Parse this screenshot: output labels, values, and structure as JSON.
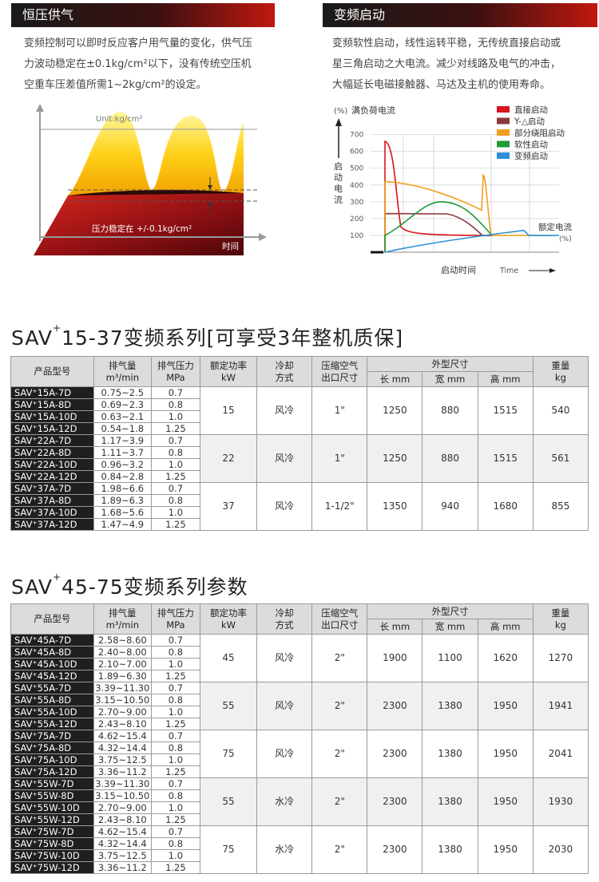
{
  "section1": {
    "title": "恒压供气",
    "text": [
      "变频控制可以即时反应客户用气量的变化，供气压",
      "力波动稳定在±0.1kg/cm²以下，没有传统空压机",
      "空重车压差值所需1~2kg/cm²的设定。"
    ],
    "diagram": {
      "unit": "Unit:kg/cm²",
      "stable_label": "压力稳定在 +/-0.1kg/cm²",
      "x_label": "时间"
    }
  },
  "section2": {
    "title": "变频启动",
    "text": [
      "变频软性启动，线性运转平稳，无传统直接启动或",
      "星三角启动之大电流。减少对线路及电气的冲击，",
      "大幅延长电磁接触器、马达及主机的使用寿命。"
    ]
  },
  "chart_data": {
    "type": "line",
    "title": "满负荷电流",
    "y_unit": "(%)",
    "ylabel": "启动电流",
    "xlabel": "启动时间",
    "x_hint": "Time",
    "right_label": "额定电流",
    "right_unit": "(%)",
    "y_ticks": [
      100,
      200,
      300,
      400,
      500,
      600,
      700
    ],
    "ylim": [
      0,
      760
    ],
    "legend_position": "top-right",
    "series": [
      {
        "name": "直接启动",
        "color": "#d8141c"
      },
      {
        "name": "Y-△启动",
        "color": "#8b3a3a"
      },
      {
        "name": "部分绕阻启动",
        "color": "#f0a020"
      },
      {
        "name": "软性启动",
        "color": "#1f9a3a"
      },
      {
        "name": "变频启动",
        "color": "#2a8fd8"
      }
    ]
  },
  "table1": {
    "title_pre": "SAV",
    "title_sup": "+",
    "title_post": "15-37变频系列[可享受3年整机质保]",
    "headers": {
      "model": "产品型号",
      "flow1": "排气量",
      "flow2": "m³/min",
      "press1": "排气压力",
      "press2": "MPa",
      "power1": "额定功率",
      "power2": "kW",
      "cool1": "冷却",
      "cool2": "方式",
      "outlet1": "压缩空气",
      "outlet2": "出口尺寸",
      "dims": "外型尺寸",
      "length": "长 mm",
      "width": "宽 mm",
      "height": "高 mm",
      "weight1": "重量",
      "weight2": "kg"
    },
    "groups": [
      {
        "power": "15",
        "cooling": "风冷",
        "outlet": "1\"",
        "length": "1250",
        "width": "880",
        "height": "1515",
        "weight": "540",
        "rows": [
          [
            "SAV⁺15A-7D",
            "0.75~2.5",
            "0.7"
          ],
          [
            "SAV⁺15A-8D",
            "0.69~2.3",
            "0.8"
          ],
          [
            "SAV⁺15A-10D",
            "0.63~2.1",
            "1.0"
          ],
          [
            "SAV⁺15A-12D",
            "0.54~1.8",
            "1.25"
          ]
        ]
      },
      {
        "power": "22",
        "cooling": "风冷",
        "outlet": "1\"",
        "length": "1250",
        "width": "880",
        "height": "1515",
        "weight": "561",
        "rows": [
          [
            "SAV⁺22A-7D",
            "1.17~3.9",
            "0.7"
          ],
          [
            "SAV⁺22A-8D",
            "1.11~3.7",
            "0.8"
          ],
          [
            "SAV⁺22A-10D",
            "0.96~3.2",
            "1.0"
          ],
          [
            "SAV⁺22A-12D",
            "0.84~2.8",
            "1.25"
          ]
        ]
      },
      {
        "power": "37",
        "cooling": "风冷",
        "outlet": "1-1/2\"",
        "length": "1350",
        "width": "940",
        "height": "1680",
        "weight": "855",
        "rows": [
          [
            "SAV⁺37A-7D",
            "1.98~6.6",
            "0.7"
          ],
          [
            "SAV⁺37A-8D",
            "1.89~6.3",
            "0.8"
          ],
          [
            "SAV⁺37A-10D",
            "1.68~5.6",
            "1.0"
          ],
          [
            "SAV⁺37A-12D",
            "1.47~4.9",
            "1.25"
          ]
        ]
      }
    ]
  },
  "table2": {
    "title_pre": "SAV",
    "title_sup": "+",
    "title_post": "45-75变频系列参数",
    "groups": [
      {
        "power": "45",
        "cooling": "风冷",
        "outlet": "2\"",
        "length": "1900",
        "width": "1100",
        "height": "1620",
        "weight": "1270",
        "rows": [
          [
            "SAV⁺45A-7D",
            "2.58~8.60",
            "0.7"
          ],
          [
            "SAV⁺45A-8D",
            "2.40~8.00",
            "0.8"
          ],
          [
            "SAV⁺45A-10D",
            "2.10~7.00",
            "1.0"
          ],
          [
            "SAV⁺45A-12D",
            "1.89~6.30",
            "1.25"
          ]
        ]
      },
      {
        "power": "55",
        "cooling": "风冷",
        "outlet": "2\"",
        "length": "2300",
        "width": "1380",
        "height": "1950",
        "weight": "1941",
        "rows": [
          [
            "SAV⁺55A-7D",
            "3.39~11.30",
            "0.7"
          ],
          [
            "SAV⁺55A-8D",
            "3.15~10.50",
            "0.8"
          ],
          [
            "SAV⁺55A-10D",
            "2.70~9.00",
            "1.0"
          ],
          [
            "SAV⁺55A-12D",
            "2.43~8.10",
            "1.25"
          ]
        ]
      },
      {
        "power": "75",
        "cooling": "风冷",
        "outlet": "2\"",
        "length": "2300",
        "width": "1380",
        "height": "1950",
        "weight": "2041",
        "rows": [
          [
            "SAV⁺75A-7D",
            "4.62~15.4",
            "0.7"
          ],
          [
            "SAV⁺75A-8D",
            "4.32~14.4",
            "0.8"
          ],
          [
            "SAV⁺75A-10D",
            "3.75~12.5",
            "1.0"
          ],
          [
            "SAV⁺75A-12D",
            "3.36~11.2",
            "1.25"
          ]
        ]
      },
      {
        "power": "55",
        "cooling": "水冷",
        "outlet": "2\"",
        "length": "2300",
        "width": "1380",
        "height": "1950",
        "weight": "1930",
        "rows": [
          [
            "SAV⁺55W-7D",
            "3.39~11.30",
            "0.7"
          ],
          [
            "SAV⁺55W-8D",
            "3.15~10.50",
            "0.8"
          ],
          [
            "SAV⁺55W-10D",
            "2.70~9.00",
            "1.0"
          ],
          [
            "SAV⁺55W-12D",
            "2.43~8.10",
            "1.25"
          ]
        ]
      },
      {
        "power": "75",
        "cooling": "水冷",
        "outlet": "2\"",
        "length": "2300",
        "width": "1380",
        "height": "1950",
        "weight": "2030",
        "rows": [
          [
            "SAV⁺75W-7D",
            "4.62~15.4",
            "0.7"
          ],
          [
            "SAV⁺75W-8D",
            "4.32~14.4",
            "0.8"
          ],
          [
            "SAV⁺75W-10D",
            "3.75~12.5",
            "1.0"
          ],
          [
            "SAV⁺75W-12D",
            "3.36~11.2",
            "1.25"
          ]
        ]
      }
    ]
  }
}
